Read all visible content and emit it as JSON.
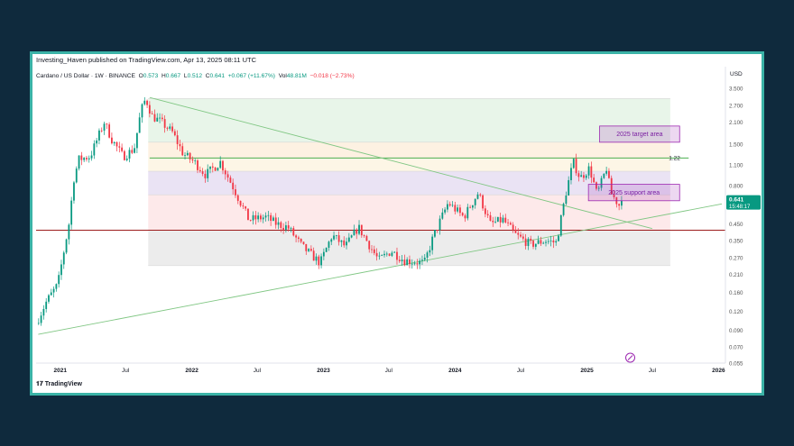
{
  "header": {
    "published": "Investing_Haven published on TradingView.com, Apr 13, 2025 08:11 UTC",
    "symbol": "Cardano / US Dollar · 1W · BINANCE",
    "open_label": "O",
    "open": "0.573",
    "high_label": "H",
    "high": "0.667",
    "low_label": "L",
    "low": "0.512",
    "close_label": "C",
    "close": "0.641",
    "change": "+0.067 (+11.67%)",
    "volume_label": "Vol",
    "volume": "48.81M",
    "extra_change": "−0.018 (−2.73%)"
  },
  "footer": {
    "brand": "TradingView"
  },
  "chart_data": {
    "type": "candlestick",
    "y_axis_label": "USD",
    "y_scale": "log",
    "ylim": [
      0.055,
      3.8
    ],
    "xlim": [
      "2020-10-26",
      "2026-01-20"
    ],
    "y_ticks": [
      3.5,
      2.7,
      2.1,
      1.5,
      1.1,
      0.8,
      0.6,
      0.45,
      0.35,
      0.27,
      0.21,
      0.16,
      0.12,
      0.09,
      0.07,
      0.055
    ],
    "y_tick_labels": [
      "3.500",
      "2.700",
      "2.100",
      "1.500",
      "1.100",
      "0.800",
      "0.600",
      "0.450",
      "0.350",
      "0.270",
      "0.210",
      "0.160",
      "0.120",
      "0.090",
      "0.070",
      "0.055"
    ],
    "x_ticks": [
      {
        "date": "2021-01-01",
        "label": "2021",
        "bold": true
      },
      {
        "date": "2021-07-01",
        "label": "Jul",
        "bold": false
      },
      {
        "date": "2022-01-01",
        "label": "2022",
        "bold": true
      },
      {
        "date": "2022-07-01",
        "label": "Jul",
        "bold": false
      },
      {
        "date": "2023-01-01",
        "label": "2023",
        "bold": true
      },
      {
        "date": "2023-07-01",
        "label": "Jul",
        "bold": false
      },
      {
        "date": "2024-01-01",
        "label": "2024",
        "bold": true
      },
      {
        "date": "2024-07-01",
        "label": "Jul",
        "bold": false
      },
      {
        "date": "2025-01-01",
        "label": "2025",
        "bold": true
      },
      {
        "date": "2025-07-01",
        "label": "Jul",
        "bold": false
      },
      {
        "date": "2026-01-01",
        "label": "2026",
        "bold": true
      }
    ],
    "last_price": "0.641",
    "countdown": "15:48:17",
    "price_path": [
      [
        "2020-11-02",
        0.1
      ],
      [
        "2020-12-01",
        0.14
      ],
      [
        "2021-01-01",
        0.18
      ],
      [
        "2021-02-01",
        0.45
      ],
      [
        "2021-02-15",
        0.9
      ],
      [
        "2021-03-01",
        1.2
      ],
      [
        "2021-04-01",
        1.25
      ],
      [
        "2021-05-10",
        2.1
      ],
      [
        "2021-06-01",
        1.6
      ],
      [
        "2021-07-01",
        1.25
      ],
      [
        "2021-08-01",
        1.4
      ],
      [
        "2021-08-20",
        2.5
      ],
      [
        "2021-09-02",
        3.0
      ],
      [
        "2021-09-20",
        2.3
      ],
      [
        "2021-10-15",
        2.1
      ],
      [
        "2021-11-15",
        1.8
      ],
      [
        "2021-12-15",
        1.3
      ],
      [
        "2022-01-15",
        1.15
      ],
      [
        "2022-02-15",
        0.95
      ],
      [
        "2022-03-28",
        1.15
      ],
      [
        "2022-05-01",
        0.8
      ],
      [
        "2022-06-15",
        0.48
      ],
      [
        "2022-08-01",
        0.5
      ],
      [
        "2022-09-01",
        0.45
      ],
      [
        "2022-10-01",
        0.43
      ],
      [
        "2022-11-10",
        0.32
      ],
      [
        "2022-12-30",
        0.25
      ],
      [
        "2023-02-01",
        0.38
      ],
      [
        "2023-03-10",
        0.32
      ],
      [
        "2023-04-15",
        0.43
      ],
      [
        "2023-06-10",
        0.26
      ],
      [
        "2023-07-15",
        0.3
      ],
      [
        "2023-08-20",
        0.26
      ],
      [
        "2023-10-15",
        0.25
      ],
      [
        "2023-11-10",
        0.38
      ],
      [
        "2023-12-20",
        0.62
      ],
      [
        "2024-02-01",
        0.5
      ],
      [
        "2024-03-12",
        0.72
      ],
      [
        "2024-04-15",
        0.45
      ],
      [
        "2024-05-20",
        0.48
      ],
      [
        "2024-06-25",
        0.38
      ],
      [
        "2024-08-05",
        0.33
      ],
      [
        "2024-09-15",
        0.35
      ],
      [
        "2024-10-15",
        0.34
      ],
      [
        "2024-11-12",
        0.75
      ],
      [
        "2024-12-01",
        1.15
      ],
      [
        "2024-12-20",
        0.9
      ],
      [
        "2025-01-15",
        1.05
      ],
      [
        "2025-02-05",
        0.7
      ],
      [
        "2025-03-03",
        1.05
      ],
      [
        "2025-03-15",
        0.72
      ],
      [
        "2025-04-07",
        0.6
      ],
      [
        "2025-04-13",
        0.641
      ]
    ],
    "annotations": [
      {
        "type": "horizontal_line",
        "y": 1.22,
        "label": "1.22",
        "color": "#4caf50"
      },
      {
        "type": "horizontal_line",
        "y": 0.41,
        "color": "#9c1c1c"
      },
      {
        "type": "box",
        "label": "2025 target area",
        "y_range": [
          1.55,
          1.98
        ],
        "x_range": [
          "2025-02-05",
          "2025-09-15"
        ],
        "color": "#9c27b0"
      },
      {
        "type": "box",
        "label": "2025 support area",
        "y_range": [
          0.64,
          0.82
        ],
        "x_range": [
          "2025-01-05",
          "2025-09-15"
        ],
        "color": "#9c27b0"
      },
      {
        "type": "fib_zone",
        "x_range": [
          "2021-09-02",
          "2025-08-20"
        ],
        "y_range": [
          0.24,
          3.0
        ]
      },
      {
        "type": "trendline",
        "from": [
          "2021-09-06",
          3.05
        ],
        "to": [
          "2025-07-01",
          0.42
        ],
        "color": "#81c784"
      },
      {
        "type": "trendline",
        "from": [
          "2020-11-01",
          0.085
        ],
        "to": [
          "2026-01-10",
          0.61
        ],
        "color": "#81c784"
      }
    ]
  }
}
